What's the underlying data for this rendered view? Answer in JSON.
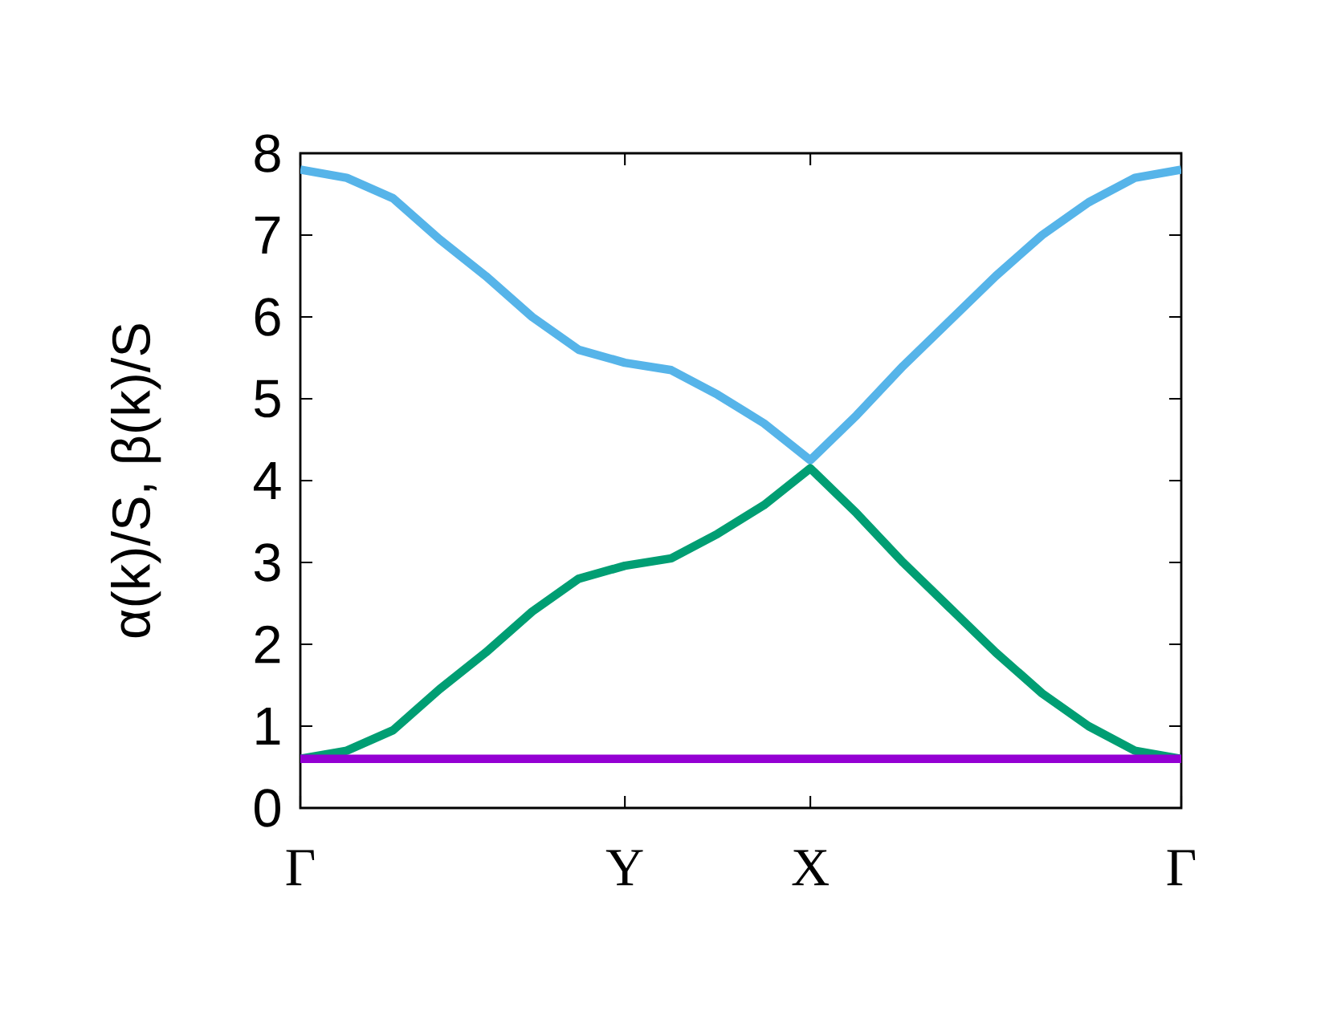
{
  "chart_data": {
    "type": "line",
    "ylabel": "α(k)/S, β(k)/S",
    "categories": [
      "Γ",
      null,
      null,
      null,
      null,
      null,
      null,
      "Y",
      null,
      null,
      null,
      "X",
      null,
      null,
      null,
      null,
      null,
      null,
      null,
      "Γ"
    ],
    "ylim": [
      0,
      8
    ],
    "yticks": [
      0,
      1,
      2,
      3,
      4,
      5,
      6,
      7,
      8
    ],
    "marker": "none",
    "line_style": "solid",
    "series": [
      {
        "color": "#56b4e9",
        "values": [
          7.8,
          7.7,
          7.45,
          6.95,
          6.5,
          6.0,
          5.6,
          5.44,
          5.35,
          5.05,
          4.7,
          4.25,
          4.8,
          5.4,
          5.95,
          6.5,
          7.0,
          7.4,
          7.7,
          7.8
        ]
      },
      {
        "color": "#009e73",
        "values": [
          0.6,
          0.7,
          0.95,
          1.45,
          1.9,
          2.4,
          2.8,
          2.96,
          3.05,
          3.35,
          3.7,
          4.15,
          3.6,
          3.0,
          2.45,
          1.9,
          1.4,
          1.0,
          0.7,
          0.6
        ]
      },
      {
        "color": "#9400d3",
        "values": [
          0.6,
          0.6,
          0.6,
          0.6,
          0.6,
          0.6,
          0.6,
          0.6,
          0.6,
          0.6,
          0.6,
          0.6,
          0.6,
          0.6,
          0.6,
          0.6,
          0.6,
          0.6,
          0.6,
          0.6
        ]
      }
    ]
  }
}
